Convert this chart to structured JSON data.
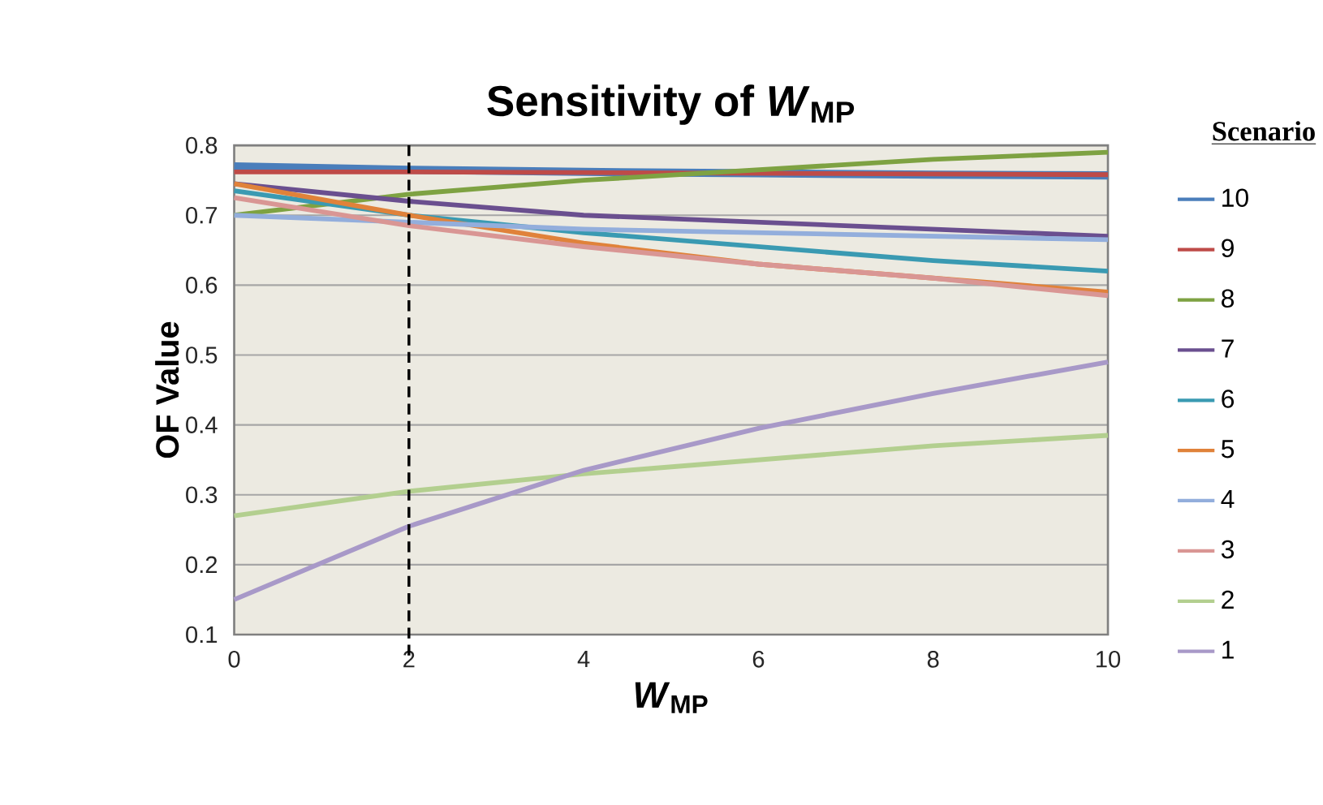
{
  "chart_data": {
    "type": "line",
    "title": "Sensitivity of *W*$_{MP}$",
    "xlabel": "*W*$_{MP}$",
    "ylabel": "OF Value",
    "legend_title": "Scenario",
    "x": [
      0,
      2,
      4,
      6,
      8,
      10
    ],
    "xlim": [
      0,
      10
    ],
    "xticks": [
      0,
      2,
      4,
      6,
      8,
      10
    ],
    "ylim": [
      0.1,
      0.8
    ],
    "yticks": [
      0.1,
      0.2,
      0.3,
      0.4,
      0.5,
      0.6,
      0.7,
      0.8
    ],
    "grid": "y",
    "legend": "right",
    "marker": "none",
    "line_style": "solid",
    "ref_lines": [
      {
        "axis": "x",
        "value": 2,
        "color": "#000000",
        "line_style": "dashed"
      }
    ],
    "series": [
      {
        "name": "10",
        "color": "#4a7ebb",
        "values": [
          0.77,
          0.765,
          0.762,
          0.76,
          0.758,
          0.757
        ]
      },
      {
        "name": "9",
        "color": "#be4b48",
        "values": [
          0.762,
          0.762,
          0.761,
          0.76,
          0.759,
          0.758
        ]
      },
      {
        "name": "8",
        "color": "#7ea242",
        "values": [
          0.7,
          0.73,
          0.75,
          0.765,
          0.78,
          0.79
        ]
      },
      {
        "name": "7",
        "color": "#6a4f8f",
        "values": [
          0.745,
          0.72,
          0.7,
          0.69,
          0.68,
          0.67
        ]
      },
      {
        "name": "6",
        "color": "#3a9ab2",
        "values": [
          0.735,
          0.7,
          0.675,
          0.655,
          0.635,
          0.62
        ]
      },
      {
        "name": "5",
        "color": "#e0823a",
        "values": [
          0.745,
          0.7,
          0.66,
          0.63,
          0.61,
          0.59
        ]
      },
      {
        "name": "4",
        "color": "#93aedc",
        "values": [
          0.7,
          0.69,
          0.68,
          0.675,
          0.67,
          0.665
        ]
      },
      {
        "name": "3",
        "color": "#d99694",
        "values": [
          0.725,
          0.685,
          0.655,
          0.63,
          0.61,
          0.585
        ]
      },
      {
        "name": "2",
        "color": "#b3cf8f",
        "values": [
          0.27,
          0.305,
          0.33,
          0.35,
          0.37,
          0.385
        ]
      },
      {
        "name": "1",
        "color": "#a899c8",
        "values": [
          0.15,
          0.255,
          0.335,
          0.395,
          0.445,
          0.49
        ]
      }
    ]
  }
}
